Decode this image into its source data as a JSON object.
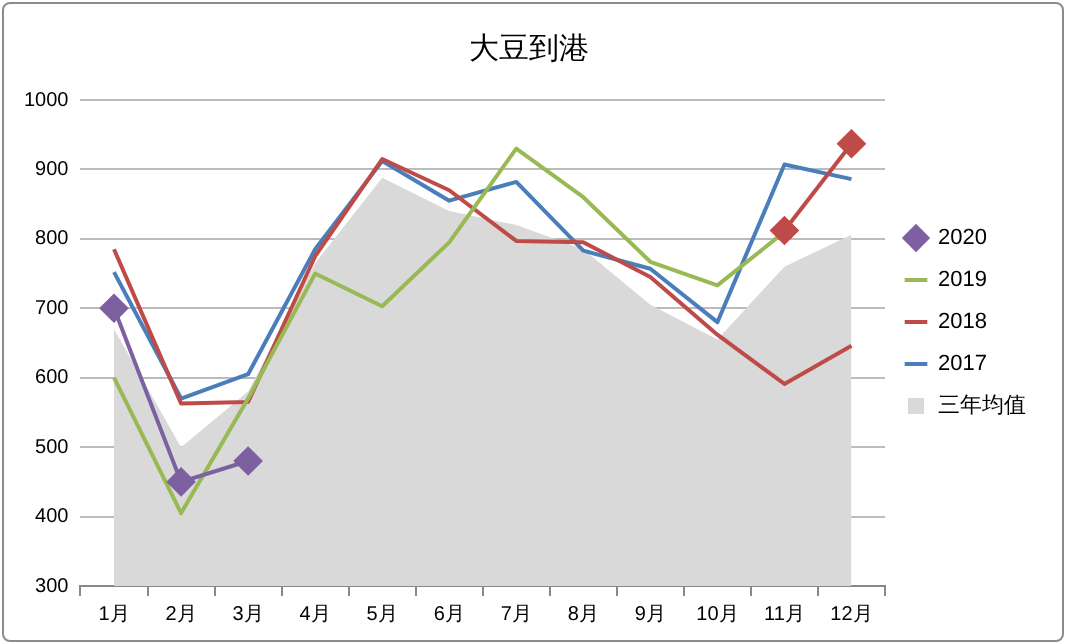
{
  "chart_data": {
    "type": "line",
    "title": "大豆到港",
    "categories": [
      "1月",
      "2月",
      "3月",
      "4月",
      "5月",
      "6月",
      "7月",
      "8月",
      "9月",
      "10月",
      "11月",
      "12月"
    ],
    "series": [
      {
        "name": "三年均值",
        "type": "area",
        "color": "#d9d9d9",
        "values": [
          670,
          500,
          580,
          765,
          888,
          840,
          820,
          785,
          705,
          655,
          760,
          806
        ]
      },
      {
        "name": "2017",
        "color": "#4a7ebb",
        "values": [
          752,
          570,
          605,
          785,
          912,
          855,
          882,
          783,
          757,
          680,
          907,
          886
        ]
      },
      {
        "name": "2018",
        "color": "#be4b48",
        "values": [
          785,
          563,
          565,
          775,
          915,
          870,
          797,
          795,
          745,
          662,
          591,
          646
        ]
      },
      {
        "name": "2019",
        "color": "#98b954",
        "values": [
          600,
          405,
          570,
          750,
          703,
          795,
          930,
          860,
          767,
          733,
          810,
          null
        ]
      },
      {
        "name": "2020",
        "color": "#7d60a0",
        "marker": "diamond",
        "values": [
          700,
          450,
          480,
          null,
          null,
          null,
          null,
          null,
          null,
          null,
          null,
          null
        ]
      },
      {
        "color": "#be4b48",
        "marker": "diamond",
        "values": [
          null,
          null,
          null,
          null,
          null,
          null,
          null,
          null,
          null,
          null,
          812,
          937
        ]
      }
    ],
    "ylim": [
      300,
      1000
    ],
    "yticks": [
      300,
      400,
      500,
      600,
      700,
      800,
      900,
      1000
    ],
    "grid": "y",
    "legend": "right"
  }
}
